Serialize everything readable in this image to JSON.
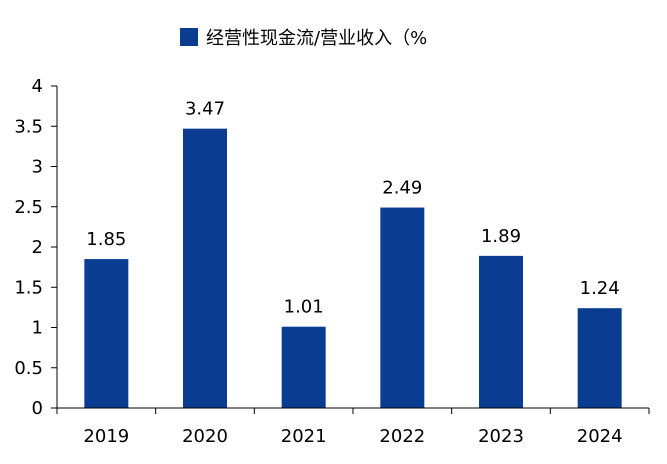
{
  "chart_data": {
    "type": "bar",
    "categories": [
      "2019",
      "2020",
      "2021",
      "2022",
      "2023",
      "2024"
    ],
    "series": [
      {
        "name": "经营性现金流/营业收入（%",
        "values": [
          1.85,
          3.47,
          1.01,
          2.49,
          1.89,
          1.24
        ],
        "color": "#0a3d91"
      }
    ],
    "data_labels": [
      "1.85",
      "3.47",
      "1.01",
      "2.49",
      "1.89",
      "1.24"
    ],
    "y_ticks": [
      "0",
      "0.5",
      "1",
      "1.5",
      "2",
      "2.5",
      "3",
      "3.5",
      "4"
    ],
    "ylim": [
      0,
      4
    ],
    "grid": false,
    "legend_position": "top-center"
  }
}
